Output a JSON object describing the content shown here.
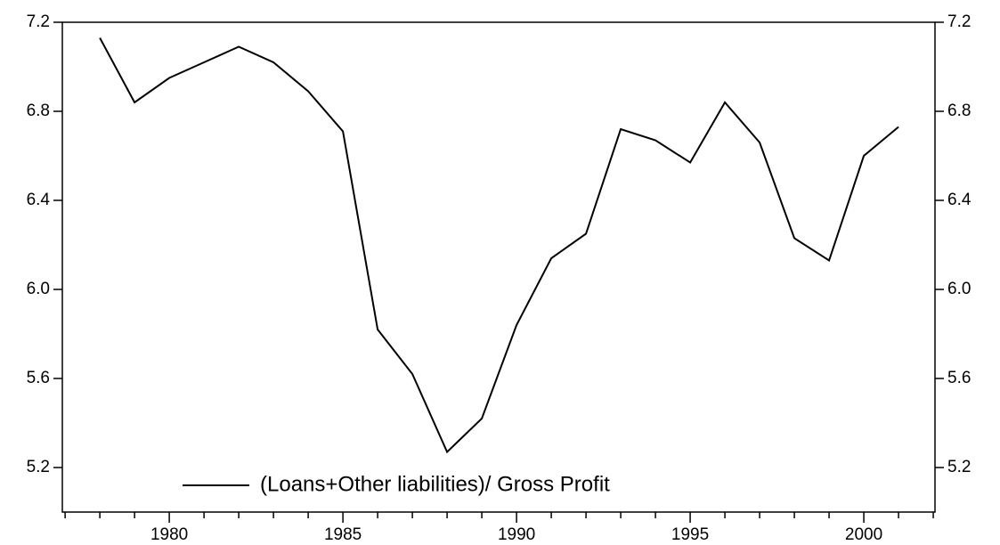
{
  "chart_data": {
    "type": "line",
    "x": [
      1978,
      1979,
      1980,
      1981,
      1982,
      1983,
      1984,
      1985,
      1986,
      1987,
      1988,
      1989,
      1990,
      1991,
      1992,
      1993,
      1994,
      1995,
      1996,
      1997,
      1998,
      1999,
      2000,
      2001
    ],
    "series": [
      {
        "name": "(Loans+Other liabilities)/ Gross Profit",
        "color": "#000000",
        "values": [
          7.13,
          6.84,
          6.95,
          7.02,
          7.09,
          7.02,
          6.89,
          6.71,
          5.82,
          5.62,
          5.27,
          5.42,
          5.84,
          6.14,
          6.25,
          6.72,
          6.67,
          6.57,
          6.84,
          6.66,
          6.23,
          6.13,
          6.6,
          6.73
        ]
      }
    ],
    "xlim": [
      1976.92,
      2002.05
    ],
    "xticks": [
      1980,
      1985,
      1990,
      1995,
      2000
    ],
    "xminorticks": [
      1977,
      1978,
      1979,
      1981,
      1982,
      1983,
      1984,
      1986,
      1987,
      1988,
      1989,
      1991,
      1992,
      1993,
      1994,
      1996,
      1997,
      1998,
      1999,
      2001,
      2002
    ],
    "ylim": [
      5.0,
      7.2
    ],
    "yticks": [
      {
        "value": 5.2,
        "label": "5.2"
      },
      {
        "value": 5.6,
        "label": "5.6"
      },
      {
        "value": 6.0,
        "label": "6.0"
      },
      {
        "value": 6.4,
        "label": "6.4"
      },
      {
        "value": 6.8,
        "label": "6.8"
      },
      {
        "value": 7.2,
        "label": "7.2"
      }
    ],
    "legend": "bottom-left",
    "grid": false
  }
}
